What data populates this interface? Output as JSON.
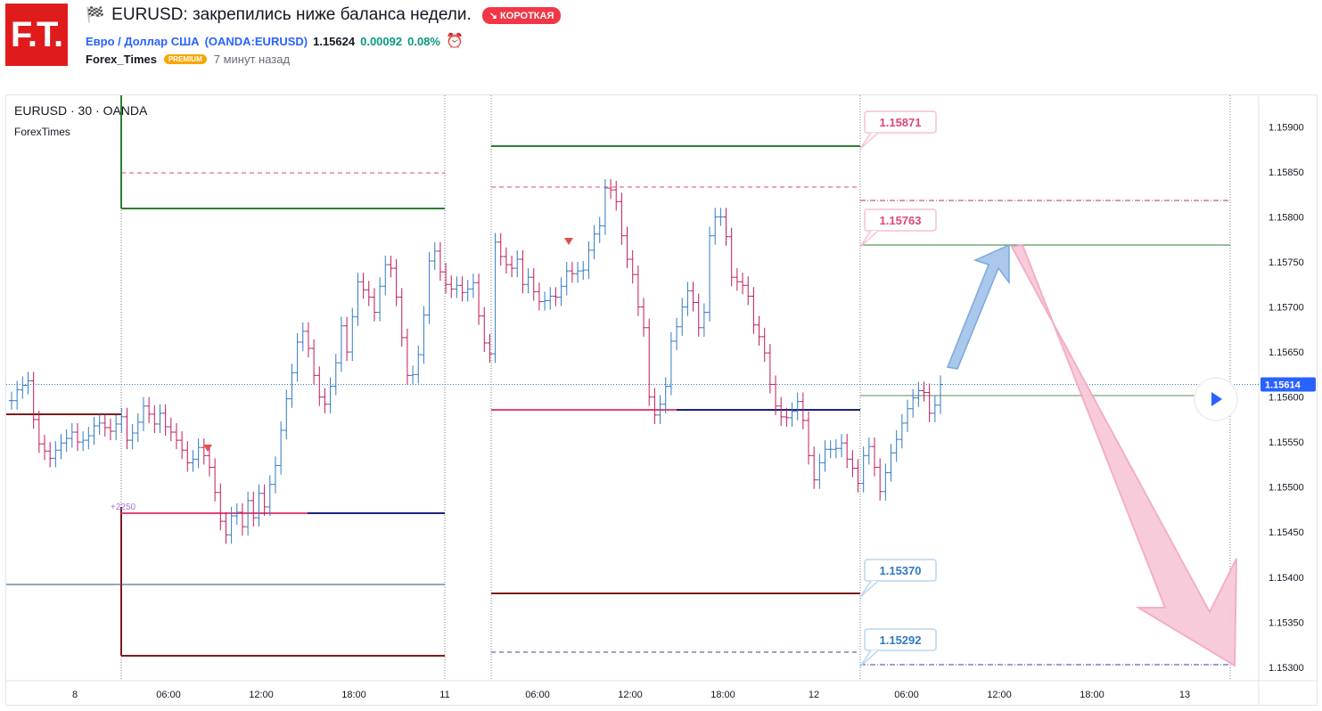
{
  "header": {
    "logo": "F.T.",
    "title": "EURUSD: закрепились ниже баланса недели.",
    "badge": "↘ КОРОТКАЯ",
    "symbol_name": "Евро / Доллар США",
    "symbol_code": "(OANDA:EURUSD)",
    "price": "1.15624",
    "change": "0.00092",
    "change_pct": "0.08%",
    "author": "Forex_Times",
    "premium": "PREMIUM",
    "time_ago": "7 минут назад"
  },
  "chart_data": {
    "type": "line",
    "title": "EURUSD · 30 · OANDA",
    "subtitle": "ForexTimes",
    "y_ticks": [
      1.159,
      1.1585,
      1.158,
      1.1575,
      1.157,
      1.1565,
      1.156,
      1.1555,
      1.155,
      1.1545,
      1.154,
      1.1535,
      1.153
    ],
    "y_tick_labels": [
      "1.15900",
      "1.15850",
      "1.15800",
      "1.15750",
      "1.15700",
      "1.15650",
      "1.15600",
      "1.15550",
      "1.15500",
      "1.15450",
      "1.15400",
      "1.15350",
      "1.15300"
    ],
    "x_tick_labels": [
      "8",
      "06:00",
      "12:00",
      "18:00",
      "11",
      "06:00",
      "12:00",
      "18:00",
      "12",
      "06:00",
      "12:00",
      "18:00",
      "13"
    ],
    "ylim": [
      1.15285,
      1.15935
    ],
    "current_price": 1.15614,
    "current_price_label": "1.15614",
    "levels": [
      {
        "label": "1.15871",
        "value": 1.15871,
        "color": "#e0457b"
      },
      {
        "label": "1.15763",
        "value": 1.15763,
        "color": "#e0457b"
      },
      {
        "label": "1.15370",
        "value": 1.1537,
        "color": "#3179c4"
      },
      {
        "label": "1.15292",
        "value": 1.15292,
        "color": "#3179c4"
      }
    ],
    "small_label": "+2250",
    "series": [
      {
        "values": [
          1.15596,
          1.15608,
          1.15613,
          1.15618,
          1.15575,
          1.15548,
          1.1554,
          1.15532,
          1.15541,
          1.15549,
          1.15554,
          1.15561,
          1.1555,
          1.15552,
          1.15557,
          1.15568,
          1.15571,
          1.15566,
          1.15562,
          1.1557,
          1.15578,
          1.15552,
          1.1556,
          1.15572,
          1.1559,
          1.15581,
          1.1557,
          1.15582,
          1.15567,
          1.15561,
          1.15552,
          1.15541,
          1.15527,
          1.15531,
          1.15544,
          1.15535,
          1.15522,
          1.15494,
          1.15462,
          1.15447,
          1.15468,
          1.15472,
          1.15456,
          1.15485,
          1.15466,
          1.15493,
          1.15478,
          1.15503,
          1.15524,
          1.15563,
          1.15598,
          1.15627,
          1.15661,
          1.15673,
          1.15654,
          1.15624,
          1.156,
          1.15592,
          1.15612,
          1.15638,
          1.15679,
          1.1565,
          1.15689,
          1.15728,
          1.15719,
          1.15711,
          1.15694,
          1.15723,
          1.15747,
          1.15743,
          1.15711,
          1.15666,
          1.15624,
          1.15625,
          1.15647,
          1.15691,
          1.15751,
          1.15762,
          1.15739,
          1.15725,
          1.1572,
          1.15724,
          1.15716,
          1.1572,
          1.15727,
          1.1569,
          1.1566,
          1.15648,
          1.15772,
          1.15756,
          1.15747,
          1.15743,
          1.15753,
          1.15725,
          1.15733,
          1.15717,
          1.15706,
          1.15707,
          1.15712,
          1.15711,
          1.15723,
          1.1574,
          1.15737,
          1.1574,
          1.15741,
          1.15763,
          1.15781,
          1.1579,
          1.15832,
          1.1583,
          1.15817,
          1.15779,
          1.15753,
          1.15736,
          1.157,
          1.15677,
          1.156,
          1.1558,
          1.15592,
          1.15612,
          1.15662,
          1.15678,
          1.157,
          1.15718,
          1.15705,
          1.15677,
          1.15694,
          1.15779,
          1.158,
          1.158,
          1.15778,
          1.15733,
          1.15728,
          1.15724,
          1.15712,
          1.1568,
          1.15667,
          1.15649,
          1.15614,
          1.1559,
          1.15578,
          1.15577,
          1.15584,
          1.15595,
          1.15574,
          1.15535,
          1.15508,
          1.15527,
          1.15542,
          1.15542,
          1.15543,
          1.15549,
          1.15531,
          1.15521,
          1.15504,
          1.15535,
          1.15545,
          1.15522,
          1.15495,
          1.15516,
          1.15538,
          1.15553,
          1.15571,
          1.15587,
          1.15599,
          1.15607,
          1.15605,
          1.15582,
          1.15591,
          1.15614
        ]
      }
    ]
  }
}
